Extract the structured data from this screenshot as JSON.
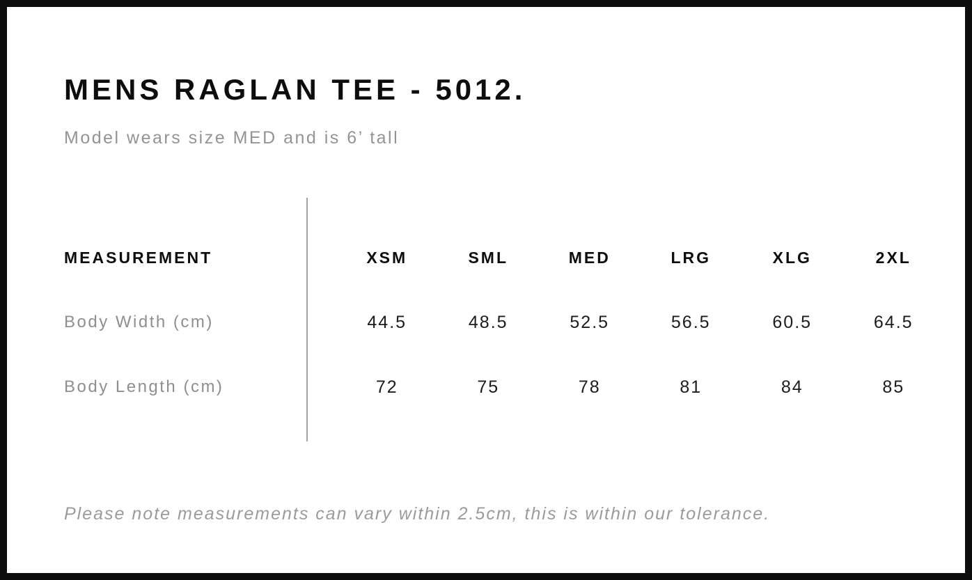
{
  "header": {
    "title": "MENS RAGLAN TEE - 5012.",
    "subtitle": "Model wears size MED and is 6’ tall"
  },
  "table": {
    "measurement_header": "MEASUREMENT",
    "columns": [
      "XSM",
      "SML",
      "MED",
      "LRG",
      "XLG",
      "2XL"
    ],
    "rows": [
      {
        "label": "Body Width (cm)",
        "values": [
          "44.5",
          "48.5",
          "52.5",
          "56.5",
          "60.5",
          "64.5"
        ]
      },
      {
        "label": "Body Length (cm)",
        "values": [
          "72",
          "75",
          "78",
          "81",
          "84",
          "85"
        ]
      }
    ]
  },
  "footnote": "Please note measurements can vary within 2.5cm, this is within our tolerance.",
  "colors": {
    "border": "#0d0d0d",
    "text_primary": "#0d0d0d",
    "text_secondary": "#949494",
    "divider": "#a3a3a3"
  }
}
